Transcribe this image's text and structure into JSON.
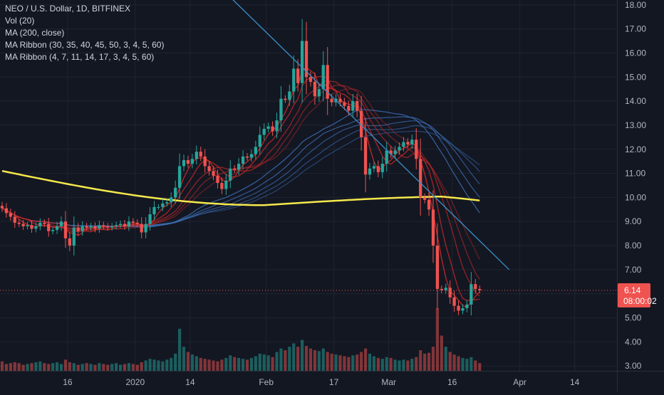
{
  "legend": {
    "title": "NEO / U.S. Dollar, 1D, BITFINEX",
    "line2": "Vol (20)",
    "line3": "MA (200, close)",
    "line4": "MA Ribbon (30, 35, 40, 45, 50, 3, 4, 5, 60)",
    "line5": "MA Ribbon (4, 7, 11, 14, 17, 3, 4, 5, 60)"
  },
  "price_tag": {
    "value": "6.14",
    "countdown": "08:00:02"
  },
  "colors": {
    "background": "#131722",
    "grid": "#1f2430",
    "up": "#26a69a",
    "down": "#ef5350",
    "ma200": "#f5e94b",
    "ribbon_slow": "#3d6fb6",
    "ribbon_fast": "#c62828",
    "trendline": "#3a8fc7",
    "price_tag": "#ef5350"
  },
  "chart_data": {
    "type": "candlestick",
    "symbol": "NEO / U.S. Dollar",
    "interval": "1D",
    "exchange": "BITFINEX",
    "y_ticks": [
      "18.00",
      "17.00",
      "16.00",
      "15.00",
      "14.00",
      "13.00",
      "12.00",
      "11.00",
      "10.00",
      "9.00",
      "8.00",
      "7.00",
      "6.00",
      "5.00",
      "4.00",
      "3.00"
    ],
    "ylim": [
      2.8,
      18.2
    ],
    "x_ticks": [
      {
        "label": "16",
        "day": 16
      },
      {
        "label": "2020",
        "day": 32
      },
      {
        "label": "14",
        "day": 45
      },
      {
        "label": "Feb",
        "day": 63
      },
      {
        "label": "17",
        "day": 79
      },
      {
        "label": "Mar",
        "day": 92
      },
      {
        "label": "16",
        "day": 107
      },
      {
        "label": "Apr",
        "day": 123
      },
      {
        "label": "14",
        "day": 136
      }
    ],
    "x_day_range": [
      0,
      146
    ],
    "close": [
      9.55,
      9.35,
      9.2,
      8.95,
      8.9,
      8.8,
      8.85,
      8.7,
      8.8,
      8.95,
      8.9,
      8.6,
      8.65,
      8.8,
      9.0,
      8.3,
      8.0,
      8.75,
      8.6,
      8.8,
      8.75,
      8.8,
      8.7,
      8.85,
      8.8,
      8.75,
      8.8,
      8.85,
      8.9,
      8.8,
      9.0,
      8.95,
      8.9,
      8.55,
      8.9,
      9.3,
      9.6,
      9.6,
      9.75,
      9.8,
      10.0,
      10.4,
      11.3,
      11.55,
      11.4,
      11.6,
      11.9,
      11.7,
      11.3,
      11.1,
      10.9,
      10.6,
      10.35,
      10.7,
      11.2,
      11.15,
      11.4,
      11.7,
      11.65,
      11.8,
      12.1,
      12.6,
      12.85,
      12.95,
      12.75,
      13.2,
      14.1,
      14.05,
      14.4,
      15.35,
      14.75,
      16.5,
      15.0,
      14.8,
      14.2,
      14.5,
      15.5,
      14.1,
      13.95,
      14.1,
      13.95,
      13.8,
      13.6,
      14.0,
      13.6,
      12.5,
      10.95,
      11.2,
      11.3,
      11.05,
      11.4,
      11.95,
      11.8,
      11.95,
      12.1,
      12.3,
      12.2,
      12.4,
      11.6,
      10.0,
      9.9,
      9.5,
      8.0,
      6.2,
      6.15,
      6.25,
      5.85,
      5.5,
      5.3,
      5.4,
      5.55,
      6.4,
      6.2,
      6.15
    ],
    "volume": [
      1.1,
      0.8,
      0.9,
      1.0,
      0.9,
      0.7,
      0.8,
      0.9,
      1.0,
      1.1,
      0.9,
      0.8,
      0.9,
      1.0,
      0.8,
      1.3,
      1.0,
      0.9,
      0.7,
      0.8,
      0.9,
      0.8,
      0.7,
      0.9,
      0.8,
      0.7,
      0.8,
      0.9,
      0.7,
      0.8,
      0.9,
      0.8,
      0.7,
      1.0,
      1.2,
      1.4,
      1.3,
      1.2,
      1.1,
      1.3,
      1.5,
      2.0,
      4.9,
      2.8,
      2.2,
      1.9,
      1.7,
      1.5,
      1.4,
      1.3,
      1.2,
      1.1,
      1.3,
      1.5,
      1.8,
      1.6,
      1.5,
      1.4,
      1.3,
      1.5,
      1.7,
      2.0,
      1.9,
      1.8,
      1.6,
      2.2,
      2.6,
      2.4,
      2.8,
      3.2,
      2.8,
      3.6,
      2.9,
      2.6,
      2.4,
      2.3,
      2.6,
      2.2,
      2.0,
      1.9,
      1.8,
      1.7,
      1.6,
      1.8,
      1.9,
      2.2,
      2.6,
      2.0,
      1.7,
      1.5,
      1.4,
      1.6,
      1.5,
      1.3,
      1.2,
      1.3,
      1.2,
      1.4,
      1.6,
      2.4,
      2.0,
      2.1,
      2.8,
      7.3,
      4.1,
      2.8,
      2.2,
      1.9,
      1.7,
      1.5,
      1.4,
      1.6,
      1.2,
      0.9
    ]
  }
}
